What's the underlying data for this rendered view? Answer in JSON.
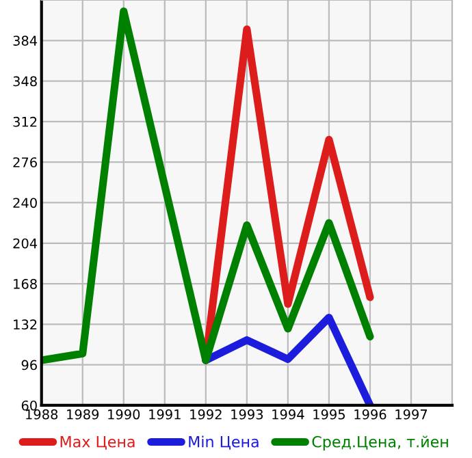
{
  "chart_data": {
    "type": "line",
    "x": [
      1988,
      1989,
      1990,
      1991,
      1992,
      1993,
      1994,
      1995,
      1996
    ],
    "series": [
      {
        "name": "Max Цена",
        "color": "#dd1c1c",
        "values": [
          null,
          null,
          null,
          null,
          100,
          394,
          150,
          296,
          156
        ]
      },
      {
        "name": "Min Цена",
        "color": "#1c1cdd",
        "values": [
          null,
          null,
          null,
          null,
          100,
          118,
          101,
          138,
          60
        ]
      },
      {
        "name": "Сред.Цена, т.йен",
        "color": "#008000",
        "values": [
          100,
          106,
          410,
          255,
          100,
          220,
          128,
          222,
          121
        ]
      }
    ],
    "xlim": [
      1988,
      1998
    ],
    "xticks": [
      1988,
      1989,
      1990,
      1991,
      1992,
      1993,
      1994,
      1995,
      1996,
      1997,
      {
        "value": 1998,
        "label": null
      }
    ],
    "ylim": [
      60,
      420
    ],
    "yticks": [
      60,
      96,
      132,
      168,
      204,
      240,
      276,
      312,
      348,
      384,
      {
        "value": 420,
        "label": null
      }
    ],
    "grid": true,
    "legend": "bottom",
    "marker": "none",
    "line_style": "solid"
  }
}
